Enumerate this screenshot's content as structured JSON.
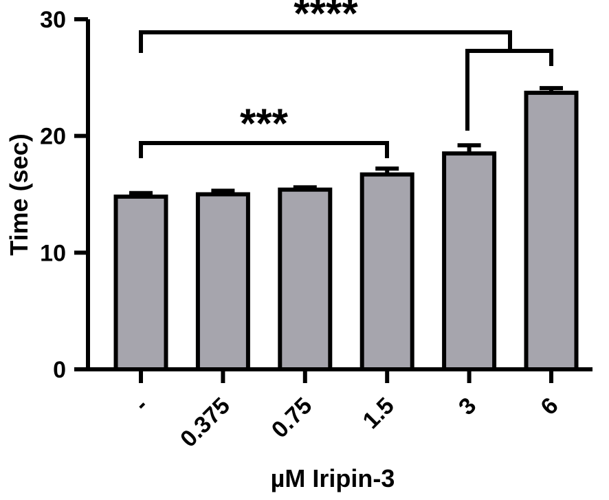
{
  "chart_data": {
    "type": "bar",
    "title": "",
    "xlabel": "µM Iripin-3",
    "ylabel": "Time (sec)",
    "categories": [
      "-",
      "0.375",
      "0.75",
      "1.5",
      "3",
      "6"
    ],
    "values": [
      14.8,
      15.0,
      15.4,
      16.7,
      18.5,
      23.7
    ],
    "errors": [
      0.3,
      0.3,
      0.2,
      0.5,
      0.7,
      0.4
    ],
    "ylim": [
      0,
      30
    ],
    "yticks": [
      0,
      10,
      20,
      30
    ],
    "ytick_labels": [
      "0",
      "10",
      "20",
      "30"
    ],
    "grid": false,
    "bar_color": "#a6a5ad",
    "edge_color": "#000000",
    "significance": [
      {
        "label": "***",
        "from": "-",
        "to": "1.5"
      },
      {
        "label": "****",
        "from": "-",
        "to": "3–6 bracket"
      }
    ]
  }
}
